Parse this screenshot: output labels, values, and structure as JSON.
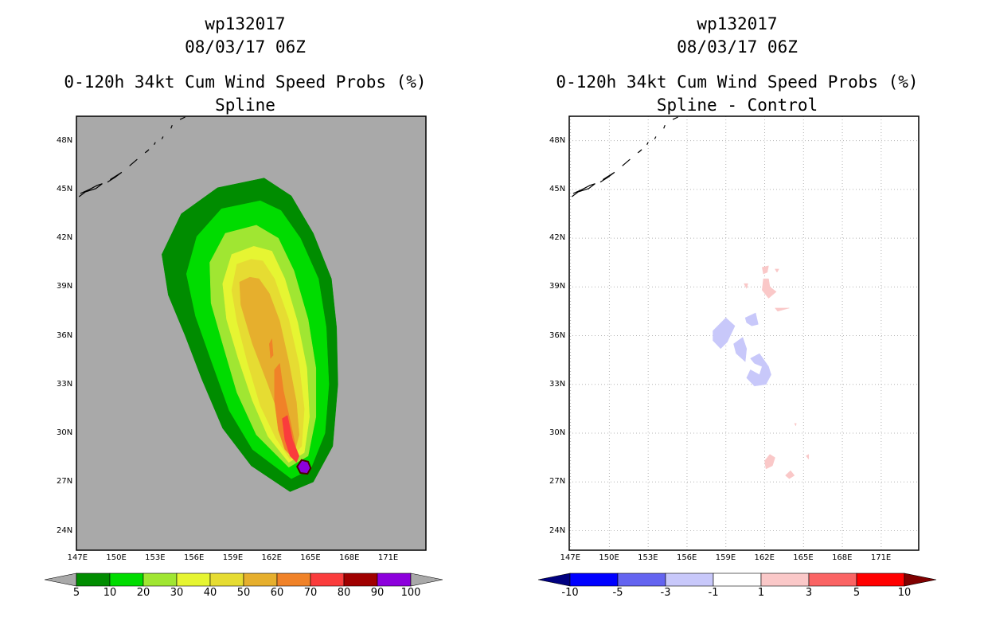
{
  "left": {
    "title_lines": [
      "wp132017",
      "08/03/17 06Z",
      "0-120h 34kt Cum Wind Speed Probs (%)",
      "Spline"
    ]
  },
  "right": {
    "title_lines": [
      "wp132017",
      "08/03/17 06Z",
      "0-120h 34kt Cum Wind Speed Probs (%)",
      "Spline - Control"
    ]
  },
  "chart_data": [
    {
      "type": "heatmap",
      "title": "wp132017 08/03/17 06Z 0-120h 34kt Cum Wind Speed Probs (%) Spline",
      "xlabel": "",
      "ylabel": "",
      "xlim": [
        146.9,
        173.9
      ],
      "ylim": [
        22.8,
        49.5
      ],
      "x_ticks": [
        147,
        150,
        153,
        156,
        159,
        162,
        165,
        168,
        171
      ],
      "x_tick_labels": [
        "147E",
        "150E",
        "153E",
        "156E",
        "159E",
        "162E",
        "165E",
        "168E",
        "171E"
      ],
      "y_ticks": [
        24,
        27,
        30,
        33,
        36,
        39,
        42,
        45,
        48
      ],
      "y_tick_labels": [
        "24N",
        "27N",
        "30N",
        "33N",
        "36N",
        "39N",
        "42N",
        "45N",
        "48N"
      ],
      "grid": false,
      "background": "#a9a9a9",
      "colorbar": {
        "labels": [
          "5",
          "10",
          "20",
          "30",
          "40",
          "50",
          "60",
          "70",
          "80",
          "90",
          "100"
        ],
        "colors": [
          "#008c00",
          "#00dc00",
          "#a0e632",
          "#e6f532",
          "#e6dc32",
          "#e6af2d",
          "#f08228",
          "#fa3c3c",
          "#a00000",
          "#8c00dc"
        ],
        "extend_low_color": "#a9a9a9",
        "extend_high_color": "#a9a9a9"
      },
      "contours": [
        {
          "level": 5,
          "color": "#008c00",
          "points": [
            [
              161.4,
              45.7
            ],
            [
              157.8,
              45.1
            ],
            [
              155.0,
              43.5
            ],
            [
              153.5,
              41.0
            ],
            [
              154.0,
              38.5
            ],
            [
              155.3,
              36.0
            ],
            [
              156.6,
              33.3
            ],
            [
              158.2,
              30.3
            ],
            [
              160.4,
              28.0
            ],
            [
              163.4,
              26.4
            ],
            [
              165.2,
              27.0
            ],
            [
              166.7,
              29.2
            ],
            [
              167.1,
              33.0
            ],
            [
              167.0,
              36.5
            ],
            [
              166.6,
              39.5
            ],
            [
              165.2,
              42.3
            ],
            [
              163.5,
              44.6
            ]
          ]
        },
        {
          "level": 10,
          "color": "#00dc00",
          "points": [
            [
              161.1,
              44.3
            ],
            [
              158.1,
              43.8
            ],
            [
              156.2,
              42.1
            ],
            [
              155.4,
              39.8
            ],
            [
              156.1,
              37.2
            ],
            [
              157.3,
              34.5
            ],
            [
              158.7,
              31.4
            ],
            [
              160.5,
              29.0
            ],
            [
              163.5,
              27.2
            ],
            [
              165.0,
              27.8
            ],
            [
              166.1,
              30.0
            ],
            [
              166.4,
              33.0
            ],
            [
              166.2,
              36.5
            ],
            [
              165.6,
              39.5
            ],
            [
              164.2,
              42.0
            ],
            [
              162.7,
              43.7
            ]
          ]
        },
        {
          "level": 20,
          "color": "#a0e632",
          "points": [
            [
              160.8,
              42.8
            ],
            [
              158.4,
              42.3
            ],
            [
              157.2,
              40.5
            ],
            [
              157.3,
              38.0
            ],
            [
              158.2,
              35.5
            ],
            [
              159.3,
              32.5
            ],
            [
              160.8,
              29.9
            ],
            [
              163.3,
              27.9
            ],
            [
              164.8,
              28.6
            ],
            [
              165.4,
              31.0
            ],
            [
              165.4,
              34.0
            ],
            [
              164.8,
              37.0
            ],
            [
              163.7,
              40.0
            ],
            [
              162.5,
              42.0
            ]
          ]
        },
        {
          "level": 30,
          "color": "#e6f532",
          "points": [
            [
              160.6,
              41.5
            ],
            [
              158.9,
              41.0
            ],
            [
              158.2,
              39.2
            ],
            [
              158.5,
              37.0
            ],
            [
              159.4,
              34.6
            ],
            [
              160.5,
              32.0
            ],
            [
              161.7,
              29.8
            ],
            [
              163.3,
              28.2
            ],
            [
              164.5,
              28.8
            ],
            [
              164.9,
              31.0
            ],
            [
              164.7,
              34.0
            ],
            [
              164.0,
              36.8
            ],
            [
              163.0,
              39.5
            ],
            [
              162.0,
              41.2
            ]
          ]
        },
        {
          "level": 40,
          "color": "#e6dc32",
          "points": [
            [
              160.4,
              40.7
            ],
            [
              159.3,
              40.4
            ],
            [
              158.9,
              38.8
            ],
            [
              159.3,
              36.9
            ],
            [
              160.1,
              34.4
            ],
            [
              161.1,
              31.7
            ],
            [
              162.3,
              29.7
            ],
            [
              163.4,
              28.4
            ],
            [
              164.3,
              29.2
            ],
            [
              164.5,
              31.5
            ],
            [
              164.1,
              34.2
            ],
            [
              163.3,
              37.0
            ],
            [
              162.2,
              39.5
            ],
            [
              161.3,
              40.6
            ]
          ]
        },
        {
          "level": 50,
          "color": "#e6af2d",
          "points": [
            [
              160.3,
              39.6
            ],
            [
              159.5,
              39.3
            ],
            [
              159.6,
              37.9
            ],
            [
              160.5,
              35.5
            ],
            [
              161.7,
              33.0
            ],
            [
              162.6,
              31.0
            ],
            [
              163.2,
              29.4
            ],
            [
              163.7,
              28.7
            ],
            [
              164.1,
              29.9
            ],
            [
              163.9,
              31.9
            ],
            [
              163.3,
              34.4
            ],
            [
              162.6,
              36.9
            ],
            [
              161.8,
              38.6
            ],
            [
              161.0,
              39.5
            ]
          ]
        },
        {
          "level": 60,
          "color": "#f08228",
          "points": [
            [
              162.2,
              33.9
            ],
            [
              162.6,
              34.3
            ],
            [
              162.9,
              32.6
            ],
            [
              163.4,
              30.8
            ],
            [
              163.8,
              29.3
            ],
            [
              163.9,
              28.8
            ],
            [
              163.6,
              28.5
            ],
            [
              163.0,
              29.0
            ],
            [
              162.5,
              30.2
            ],
            [
              162.2,
              32.0
            ]
          ]
        },
        {
          "level": 70,
          "color": "#fa3c3c",
          "points": [
            [
              162.8,
              30.9
            ],
            [
              163.2,
              31.1
            ],
            [
              163.6,
              29.6
            ],
            [
              164.1,
              28.6
            ],
            [
              163.9,
              28.2
            ],
            [
              163.4,
              28.6
            ],
            [
              163.0,
              29.6
            ]
          ]
        },
        {
          "level": 70,
          "color": "#f08228",
          "points": [
            [
              161.8,
              35.5
            ],
            [
              162.0,
              35.8
            ],
            [
              162.1,
              34.8
            ],
            [
              161.9,
              34.6
            ]
          ]
        },
        {
          "level": 100,
          "color": "#8c00dc",
          "points": [
            [
              164.3,
              28.35
            ],
            [
              164.8,
              28.25
            ],
            [
              165.0,
              27.85
            ],
            [
              164.75,
              27.5
            ],
            [
              164.2,
              27.55
            ],
            [
              163.95,
              27.95
            ]
          ]
        }
      ]
    },
    {
      "type": "heatmap",
      "title": "wp132017 08/03/17 06Z 0-120h 34kt Cum Wind Speed Probs (%) Spline - Control",
      "xlabel": "",
      "ylabel": "",
      "xlim": [
        146.9,
        173.9
      ],
      "ylim": [
        22.8,
        49.5
      ],
      "x_ticks": [
        147,
        150,
        153,
        156,
        159,
        162,
        165,
        168,
        171
      ],
      "x_tick_labels": [
        "147E",
        "150E",
        "153E",
        "156E",
        "159E",
        "162E",
        "165E",
        "168E",
        "171E"
      ],
      "y_ticks": [
        24,
        27,
        30,
        33,
        36,
        39,
        42,
        45,
        48
      ],
      "y_tick_labels": [
        "24N",
        "27N",
        "30N",
        "33N",
        "36N",
        "39N",
        "42N",
        "45N",
        "48N"
      ],
      "grid": true,
      "background": "#ffffff",
      "colorbar": {
        "labels": [
          "-10",
          "-5",
          "-3",
          "-1",
          "1",
          "3",
          "5",
          "10"
        ],
        "colors": [
          "#0000ff",
          "#6464f0",
          "#c8c8fa",
          "#ffffff",
          "#fac8c8",
          "#fa6464",
          "#ff0000"
        ],
        "extend_low_color": "#000080",
        "extend_high_color": "#800000"
      },
      "contours": [
        {
          "level": -1,
          "color": "#c8c8fa",
          "points": [
            [
              158.0,
              36.3
            ],
            [
              159.0,
              37.1
            ],
            [
              159.7,
              36.6
            ],
            [
              159.1,
              35.6
            ],
            [
              158.6,
              35.2
            ],
            [
              158.0,
              35.7
            ]
          ]
        },
        {
          "level": -1,
          "color": "#c8c8fa",
          "points": [
            [
              160.5,
              37.1
            ],
            [
              161.3,
              37.4
            ],
            [
              161.5,
              36.7
            ],
            [
              161.0,
              36.6
            ],
            [
              160.6,
              36.8
            ]
          ]
        },
        {
          "level": -1,
          "color": "#c8c8fa",
          "points": [
            [
              159.6,
              35.5
            ],
            [
              160.3,
              35.9
            ],
            [
              160.6,
              35.2
            ],
            [
              160.5,
              34.4
            ],
            [
              159.8,
              34.9
            ]
          ]
        },
        {
          "level": -1,
          "color": "#c8c8fa",
          "points": [
            [
              160.9,
              34.6
            ],
            [
              161.6,
              34.9
            ],
            [
              162.3,
              34.1
            ],
            [
              162.5,
              33.6
            ],
            [
              162.1,
              33.0
            ],
            [
              161.2,
              32.9
            ],
            [
              160.6,
              33.4
            ],
            [
              160.9,
              33.9
            ],
            [
              161.6,
              33.6
            ],
            [
              161.8,
              34.1
            ],
            [
              161.2,
              34.3
            ]
          ]
        },
        {
          "level": 1,
          "color": "#fac8c8",
          "points": [
            [
              161.8,
              40.2
            ],
            [
              162.3,
              40.3
            ],
            [
              162.2,
              39.9
            ],
            [
              161.9,
              39.8
            ]
          ]
        },
        {
          "level": 1,
          "color": "#fac8c8",
          "points": [
            [
              161.9,
              39.5
            ],
            [
              162.3,
              39.5
            ],
            [
              162.4,
              39.0
            ],
            [
              162.9,
              38.7
            ],
            [
              162.3,
              38.3
            ],
            [
              161.8,
              38.8
            ]
          ]
        },
        {
          "level": 1,
          "color": "#fac8c8",
          "points": [
            [
              162.8,
              37.7
            ],
            [
              163.9,
              37.7
            ],
            [
              163.0,
              37.5
            ]
          ]
        },
        {
          "level": 1,
          "color": "#fac8c8",
          "points": [
            [
              160.4,
              39.2
            ],
            [
              160.7,
              39.2
            ],
            [
              160.6,
              38.9
            ]
          ]
        },
        {
          "level": 1,
          "color": "#fac8c8",
          "points": [
            [
              162.8,
              40.1
            ],
            [
              163.1,
              40.1
            ],
            [
              162.95,
              39.9
            ]
          ]
        },
        {
          "level": 1,
          "color": "#fac8c8",
          "points": [
            [
              162.0,
              28.3
            ],
            [
              162.4,
              28.7
            ],
            [
              162.8,
              28.5
            ],
            [
              162.6,
              28.0
            ],
            [
              162.1,
              27.8
            ]
          ]
        },
        {
          "level": 1,
          "color": "#fac8c8",
          "points": [
            [
              163.6,
              27.4
            ],
            [
              164.0,
              27.7
            ],
            [
              164.3,
              27.4
            ],
            [
              163.9,
              27.2
            ]
          ]
        },
        {
          "level": 1,
          "color": "#fac8c8",
          "points": [
            [
              165.2,
              28.6
            ],
            [
              165.4,
              28.7
            ],
            [
              165.4,
              28.4
            ]
          ]
        },
        {
          "level": 1,
          "color": "#fac8c8",
          "points": [
            [
              164.3,
              30.6
            ],
            [
              164.45,
              30.6
            ],
            [
              164.4,
              30.45
            ]
          ]
        }
      ]
    }
  ]
}
